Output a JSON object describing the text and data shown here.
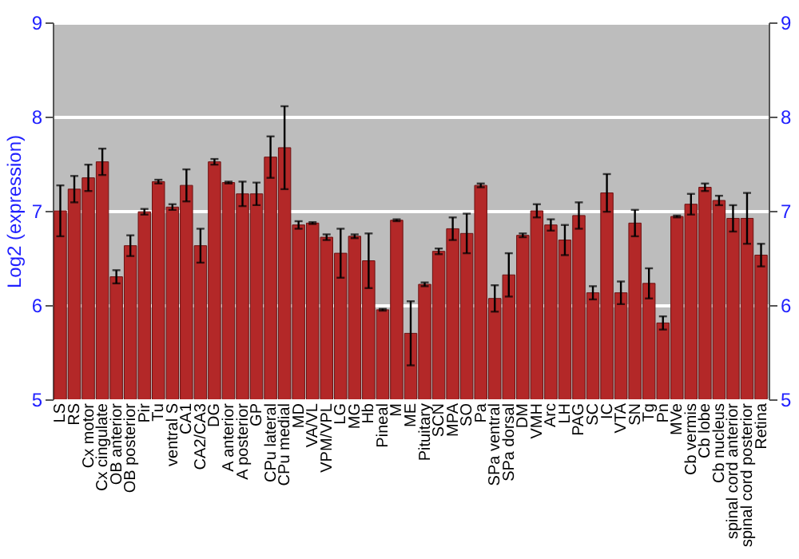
{
  "chart_data": {
    "type": "bar",
    "ylabel": "Log2 (expression)",
    "categories": [
      "LS",
      "RS",
      "Cx motor",
      "Cx cingulate",
      "OB anterior",
      "OB posterior",
      "Pir",
      "Tu",
      "ventral S",
      "CA1",
      "CA2/CA3",
      "DG",
      "A anterior",
      "A posterior",
      "GP",
      "CPu lateral",
      "CPu medial",
      "MD",
      "VA/VL",
      "VPM/VPL",
      "LG",
      "MG",
      "Hb",
      "Pineal",
      "M",
      "ME",
      "Pituitary",
      "SCN",
      "MPA",
      "SO",
      "Pa",
      "SPa ventral",
      "SPa dorsal",
      "DM",
      "VMH",
      "Arc",
      "LH",
      "PAG",
      "SC",
      "IC",
      "VTA",
      "SN",
      "Tg",
      "Pn",
      "MVe",
      "Cb vermis",
      "Cb lobe",
      "Cb nucleus",
      "spinal cord anterior",
      "spinal cord posterior",
      "Retina"
    ],
    "values": [
      7.0,
      7.23,
      7.35,
      7.52,
      6.3,
      6.63,
      6.99,
      7.31,
      7.04,
      7.27,
      6.63,
      7.52,
      7.3,
      7.18,
      7.18,
      7.57,
      7.67,
      6.85,
      6.87,
      6.72,
      6.55,
      6.73,
      6.47,
      5.95,
      6.9,
      5.7,
      6.22,
      6.57,
      6.81,
      6.76,
      7.27,
      6.07,
      6.32,
      6.74,
      7.0,
      6.85,
      6.69,
      6.95,
      6.13,
      7.19,
      6.13,
      6.87,
      6.23,
      5.81,
      6.94,
      7.07,
      7.25,
      7.11,
      6.92,
      6.92,
      6.53
    ],
    "errors": [
      0.27,
      0.14,
      0.14,
      0.14,
      0.07,
      0.11,
      0.03,
      0.02,
      0.03,
      0.17,
      0.18,
      0.03,
      0.01,
      0.13,
      0.12,
      0.22,
      0.44,
      0.04,
      0.01,
      0.03,
      0.26,
      0.02,
      0.29,
      0.01,
      0.01,
      0.34,
      0.02,
      0.03,
      0.12,
      0.21,
      0.02,
      0.14,
      0.23,
      0.02,
      0.07,
      0.06,
      0.16,
      0.14,
      0.07,
      0.2,
      0.12,
      0.14,
      0.16,
      0.07,
      0.01,
      0.11,
      0.04,
      0.05,
      0.14,
      0.27,
      0.12
    ],
    "color": "#b32828",
    "ylim": [
      5,
      9
    ],
    "yticks": [
      5,
      6,
      7,
      8,
      9
    ],
    "y2lim": [
      5,
      9
    ],
    "y2ticks": [
      5,
      6,
      7,
      8,
      9
    ],
    "grid": "y"
  }
}
